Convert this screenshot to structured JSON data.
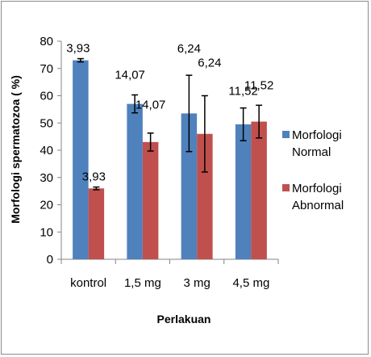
{
  "chart_data": {
    "type": "bar",
    "categories": [
      "kontrol",
      "1,5 mg",
      "3 mg",
      "4,5 mg"
    ],
    "series": [
      {
        "name": "Morfologi Normal",
        "color": "#4f81bd",
        "values": [
          73,
          57,
          53.5,
          49.5
        ],
        "error": [
          0.6,
          3.3,
          14,
          6
        ],
        "labels": [
          "3,93",
          "14,07",
          "6,24",
          "11,52"
        ]
      },
      {
        "name": "Morfologi Abnormal",
        "color": "#c0504d",
        "values": [
          26,
          43,
          46,
          50.5
        ],
        "error": [
          0.5,
          3.3,
          14,
          6
        ],
        "labels": [
          "3,93",
          "14,07",
          "6,24",
          "11,52"
        ]
      }
    ],
    "xlabel": "Perlakuan",
    "ylabel": "Morfologi spermatozoa ( %)",
    "ylim": [
      0,
      80
    ],
    "yticks": [
      0,
      10,
      20,
      30,
      40,
      50,
      60,
      70,
      80
    ],
    "grid": false,
    "legend": "right"
  }
}
